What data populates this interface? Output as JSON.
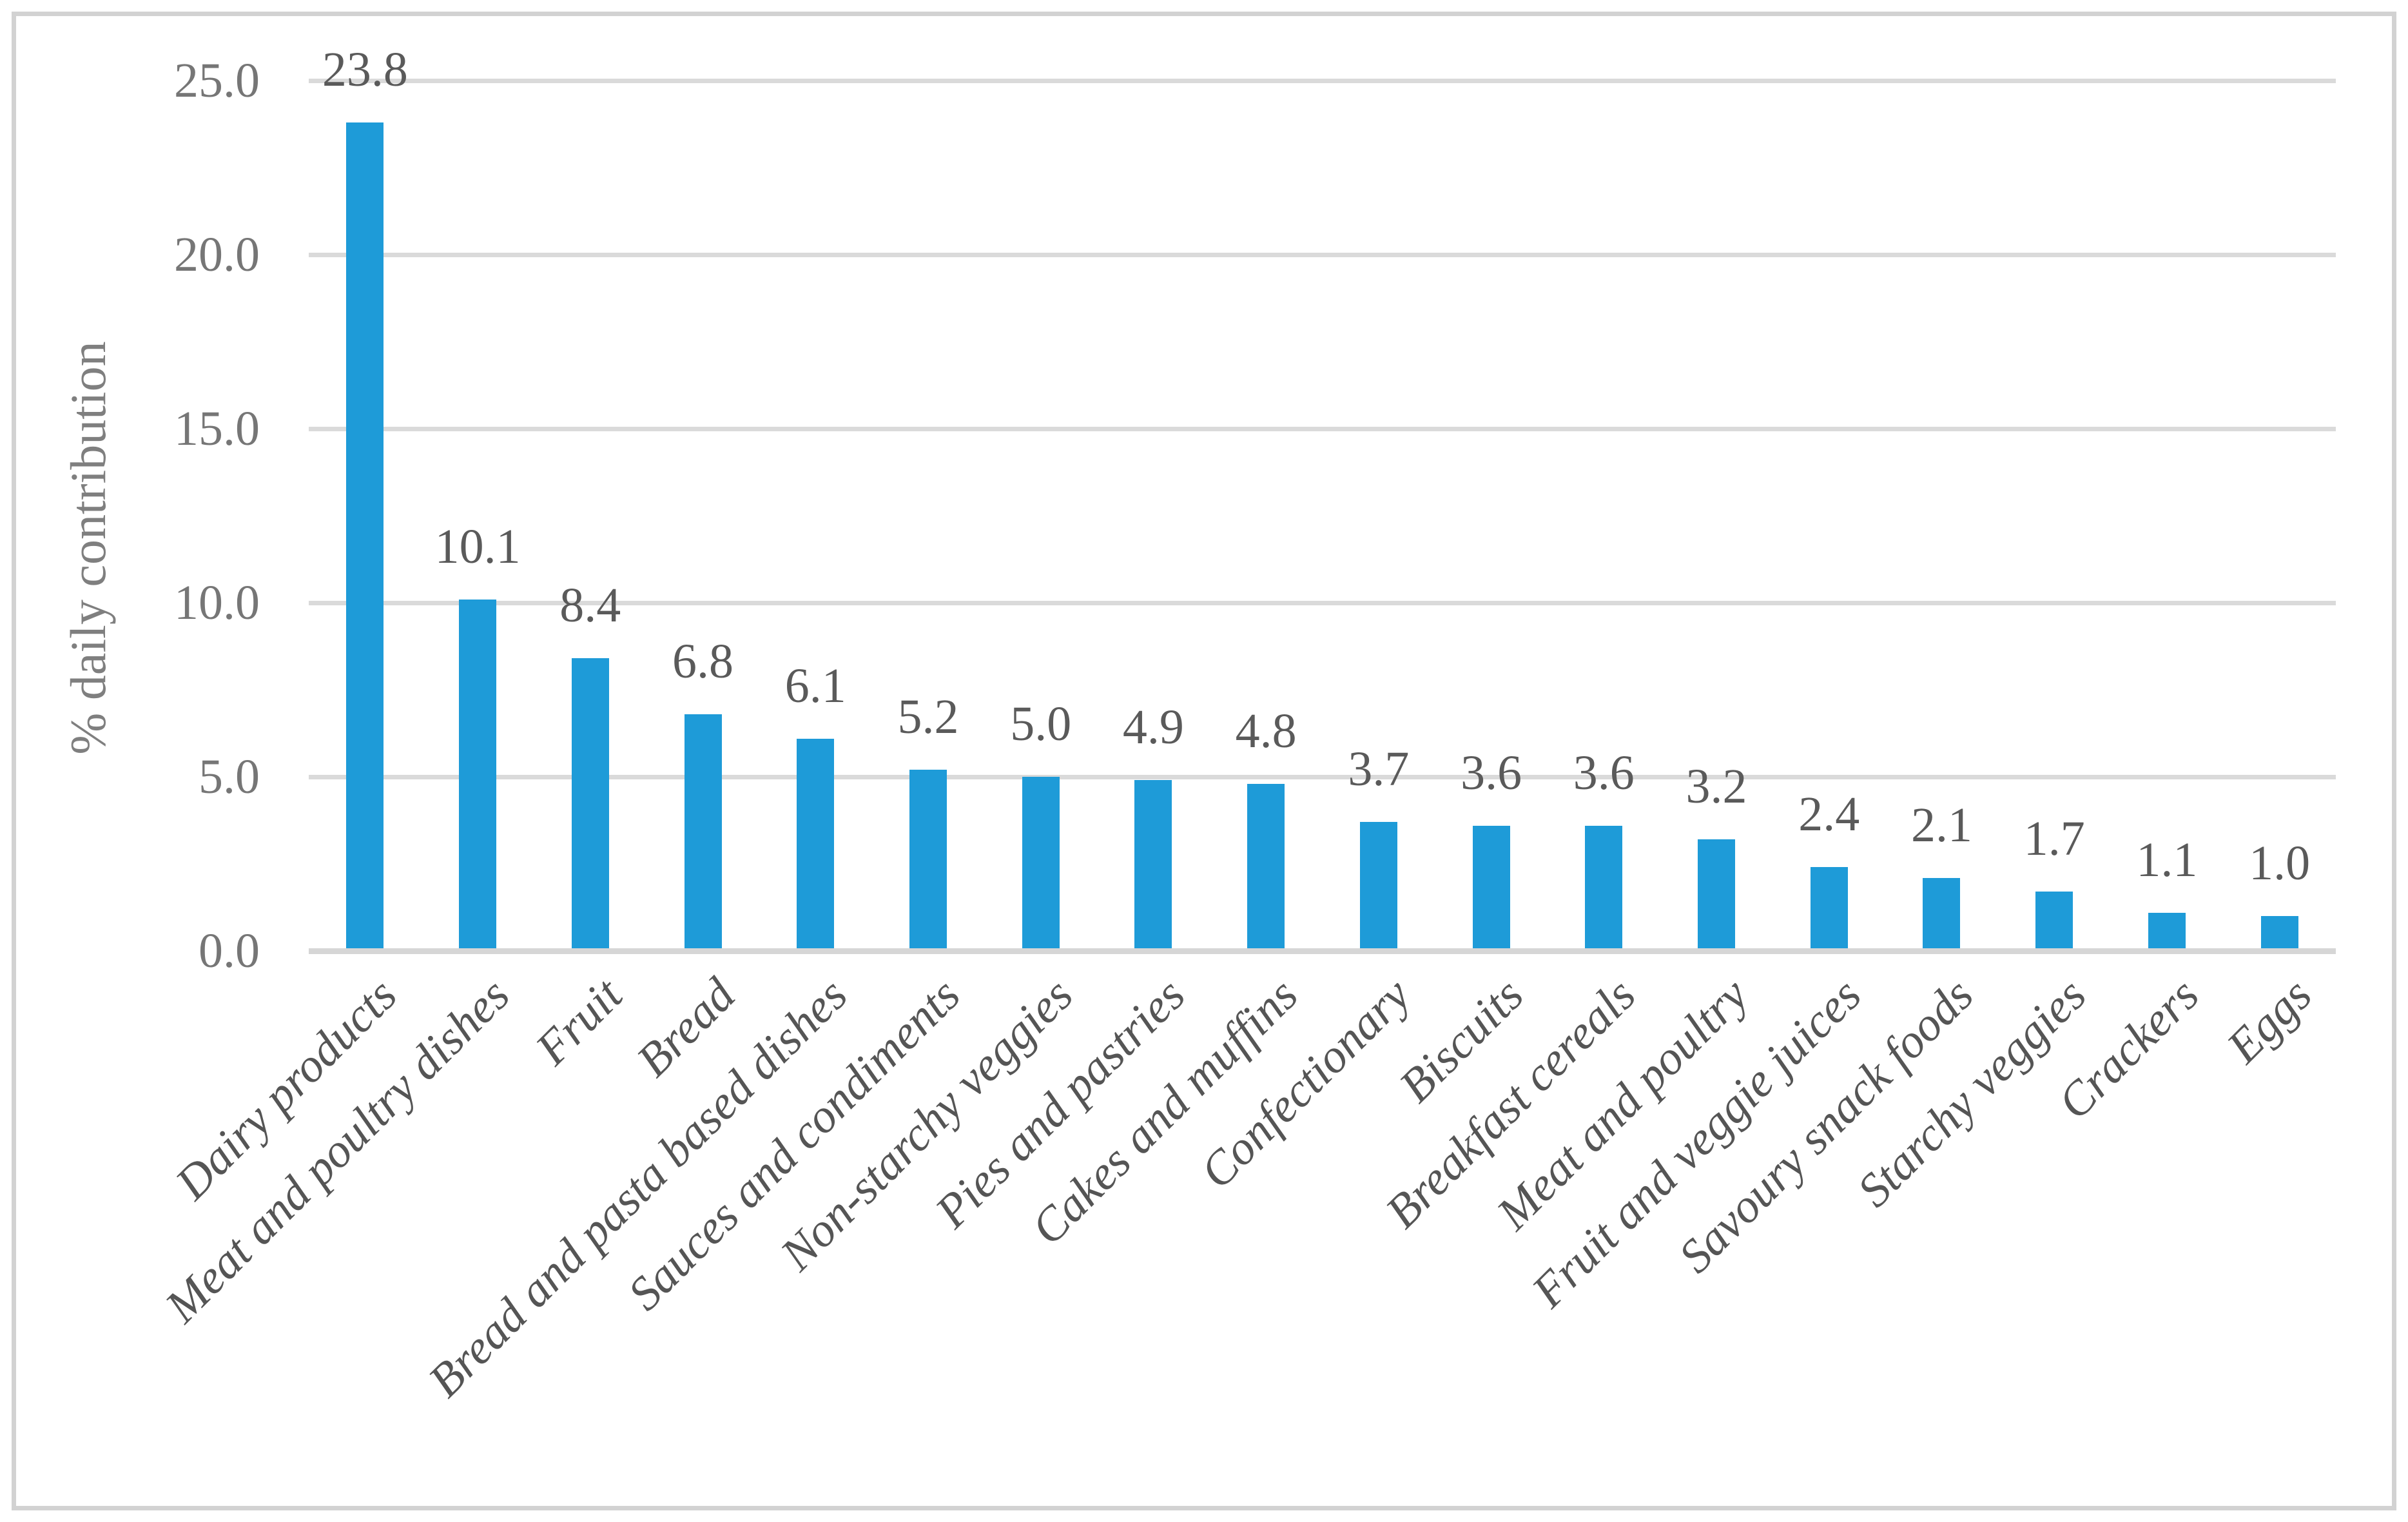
{
  "chart_data": {
    "type": "bar",
    "title": "",
    "xlabel": "",
    "ylabel": "% daily contribution",
    "categories": [
      "Dairy products",
      "Meat and poultry dishes",
      "Fruit",
      "Bread",
      "Bread and pasta based dishes",
      "Sauces and condiments",
      "Non-starchy veggies",
      "Pies and pastries",
      "Cakes and muffins",
      "Confectionary",
      "Biscuits",
      "Breakfast cereals",
      "Meat and poultry",
      "Fruit and veggie juices",
      "Savoury snack foods",
      "Starchy veggies",
      "Crackers",
      "Eggs"
    ],
    "values": [
      23.8,
      10.1,
      8.4,
      6.8,
      6.1,
      5.2,
      5.0,
      4.9,
      4.8,
      3.7,
      3.6,
      3.6,
      3.2,
      2.4,
      2.1,
      1.7,
      1.1,
      1.0
    ],
    "value_labels": [
      "23.8",
      "10.1",
      "8.4",
      "6.8",
      "6.1",
      "5.2",
      "5.0",
      "4.9",
      "4.8",
      "3.7",
      "3.6",
      "3.6",
      "3.2",
      "2.4",
      "2.1",
      "1.7",
      "1.1",
      "1.0"
    ],
    "ytick_values": [
      0,
      5,
      10,
      15,
      20,
      25
    ],
    "ytick_labels": [
      "0.0",
      "5.0",
      "10.0",
      "15.0",
      "20.0",
      "25.0"
    ],
    "ylim": [
      0,
      25
    ],
    "grid": true,
    "legend": "none",
    "category_label_rotation_deg": 45,
    "colors": {
      "bar": "#1e9bd8",
      "gridline": "#dadada",
      "axis_line": "#d6d6d6",
      "frame_border": "#d2d2d2",
      "tick_label": "#767676",
      "value_label": "#5a5a5a",
      "category_label": "#555555",
      "y_title": "#7f7f7f",
      "background": "#ffffff"
    }
  }
}
